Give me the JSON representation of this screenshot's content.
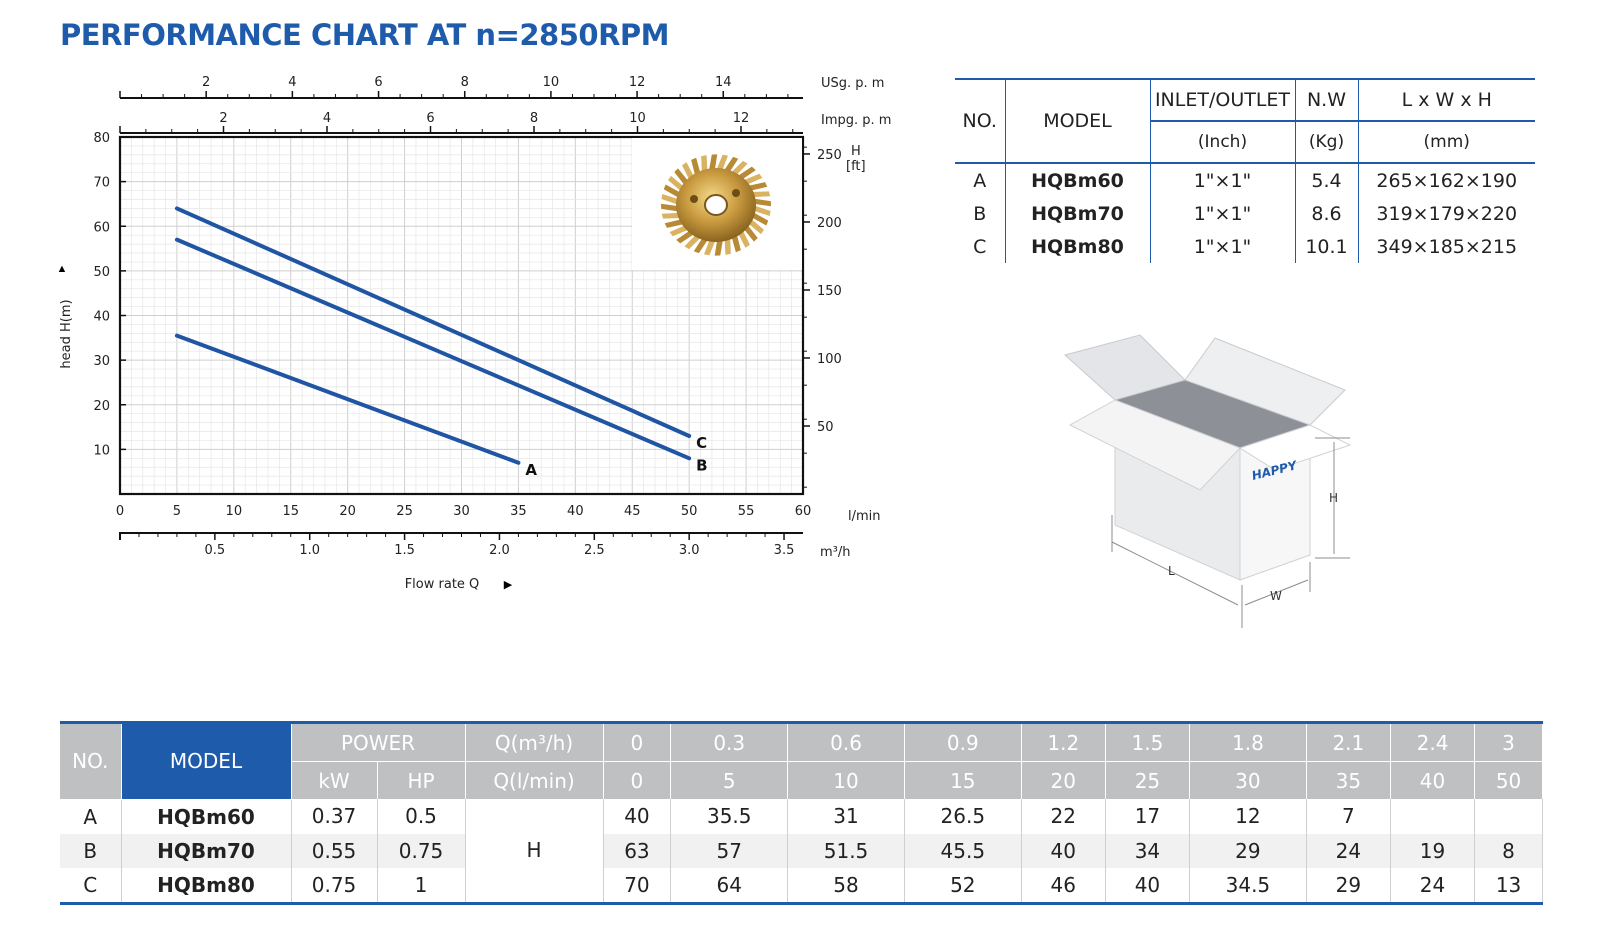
{
  "title": "PERFORMANCE CHART AT n=2850RPM",
  "chart_data": {
    "type": "line",
    "x_primary": {
      "label": "l/min",
      "ticks": [
        0,
        5,
        10,
        15,
        20,
        25,
        30,
        35,
        40,
        45,
        50,
        55,
        60
      ],
      "range": [
        0,
        60
      ]
    },
    "x_secondary_bottom": {
      "label": "m³/h",
      "ticks": [
        "0.5",
        "1.0",
        "1.5",
        "2.0",
        "2.5",
        "3.0",
        "3.5"
      ],
      "values": [
        0.5,
        1.0,
        1.5,
        2.0,
        2.5,
        3.0,
        3.5
      ]
    },
    "x_top_us": {
      "label": "USg. p. m",
      "ticks": [
        2,
        4,
        6,
        8,
        10,
        12,
        14
      ]
    },
    "x_top_imp": {
      "label": "Impg. p. m",
      "ticks": [
        2,
        4,
        6,
        8,
        10,
        12
      ]
    },
    "y_left": {
      "label": "head H(m)",
      "ticks": [
        10,
        20,
        30,
        40,
        50,
        60,
        70,
        80
      ],
      "range": [
        0,
        80
      ]
    },
    "y_right": {
      "label_top": "H",
      "label_bottom": "[ft]",
      "ticks": [
        50,
        100,
        150,
        200,
        250
      ]
    },
    "xlabel": "Flow rate Q",
    "series": [
      {
        "name": "A",
        "x": [
          5,
          35
        ],
        "y": [
          35.5,
          7
        ]
      },
      {
        "name": "B",
        "x": [
          5,
          50
        ],
        "y": [
          57,
          8
        ]
      },
      {
        "name": "C",
        "x": [
          5,
          50
        ],
        "y": [
          64,
          13
        ]
      }
    ],
    "line_color": "#1f55a3",
    "grid": true,
    "inset_image": "brass-impeller"
  },
  "spec_table": {
    "headers": {
      "no": "NO.",
      "model": "MODEL",
      "inlet": "INLET/OUTLET",
      "nw": "N.W",
      "dims": "L x W x H"
    },
    "units": {
      "inlet": "(Inch)",
      "nw": "(Kg)",
      "dims": "(mm)"
    },
    "rows": [
      {
        "no": "A",
        "model": "HQBm60",
        "inlet": "1\"×1\"",
        "nw": "5.4",
        "dims": "265×162×190"
      },
      {
        "no": "B",
        "model": "HQBm70",
        "inlet": "1\"×1\"",
        "nw": "8.6",
        "dims": "319×179×220"
      },
      {
        "no": "C",
        "model": "HQBm80",
        "inlet": "1\"×1\"",
        "nw": "10.1",
        "dims": "349×185×215"
      }
    ]
  },
  "box": {
    "brand": "HAPPY",
    "dim_h": "H",
    "dim_l": "L",
    "dim_w": "W"
  },
  "perf_table": {
    "no": "NO.",
    "model": "MODEL",
    "power": "POWER",
    "kw": "kW",
    "hp": "HP",
    "q_m3h": "Q(m³/h)",
    "q_lmin": "Q(l/min)",
    "h_label": "H",
    "m3h": [
      "0",
      "0.3",
      "0.6",
      "0.9",
      "1.2",
      "1.5",
      "1.8",
      "2.1",
      "2.4",
      "3"
    ],
    "lmin": [
      "0",
      "5",
      "10",
      "15",
      "20",
      "25",
      "30",
      "35",
      "40",
      "50"
    ],
    "rows": [
      {
        "no": "A",
        "model": "HQBm60",
        "kw": "0.37",
        "hp": "0.5",
        "h": [
          "40",
          "35.5",
          "31",
          "26.5",
          "22",
          "17",
          "12",
          "7",
          "",
          ""
        ]
      },
      {
        "no": "B",
        "model": "HQBm70",
        "kw": "0.55",
        "hp": "0.75",
        "h": [
          "63",
          "57",
          "51.5",
          "45.5",
          "40",
          "34",
          "29",
          "24",
          "19",
          "8"
        ]
      },
      {
        "no": "C",
        "model": "HQBm80",
        "kw": "0.75",
        "hp": "1",
        "h": [
          "70",
          "64",
          "58",
          "52",
          "46",
          "40",
          "34.5",
          "29",
          "24",
          "13"
        ]
      }
    ]
  }
}
